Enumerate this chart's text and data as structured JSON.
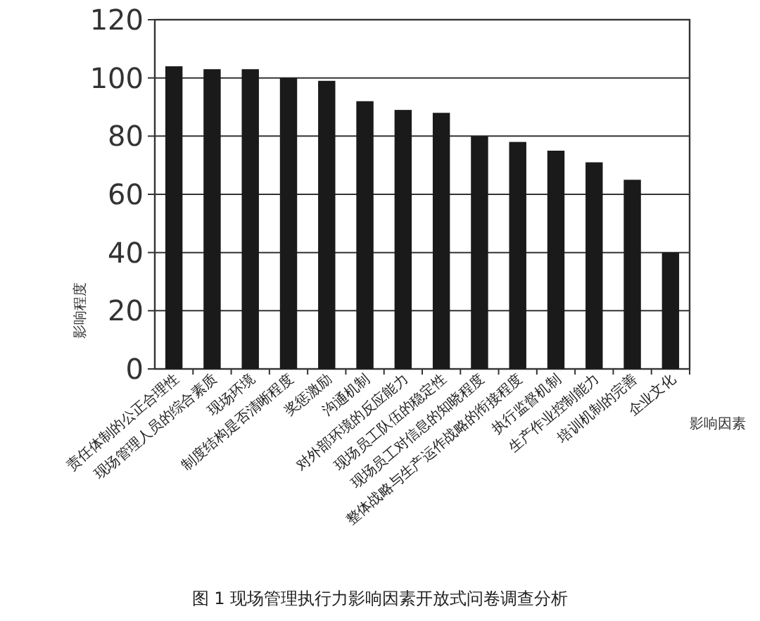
{
  "chart_data": {
    "type": "bar",
    "title": "图 1  现场管理执行力影响因素开放式问卷调查分析",
    "xlabel": "影响因素",
    "ylabel": "影响程度",
    "categories": [
      "责任体制的公正合理性",
      "现场管理人员的综合素质",
      "现场环境",
      "制度结构是否清晰程度",
      "奖惩激励",
      "沟通机制",
      "对外部环境的反应能力",
      "现场员工队伍的稳定性",
      "现场员工对信息的知晓程度",
      "整体战略与生产运作战略的衔接程度",
      "执行监督机制",
      "生产作业控制能力",
      "培训机制的完善",
      "企业文化"
    ],
    "values": [
      104,
      103,
      103,
      100,
      99,
      92,
      89,
      88,
      80,
      78,
      75,
      71,
      65,
      40
    ],
    "color": "#1a1a1a",
    "ylim": [
      0,
      120
    ],
    "yticks": [
      0,
      20,
      40,
      60,
      80,
      100,
      120
    ],
    "grid": "y"
  }
}
